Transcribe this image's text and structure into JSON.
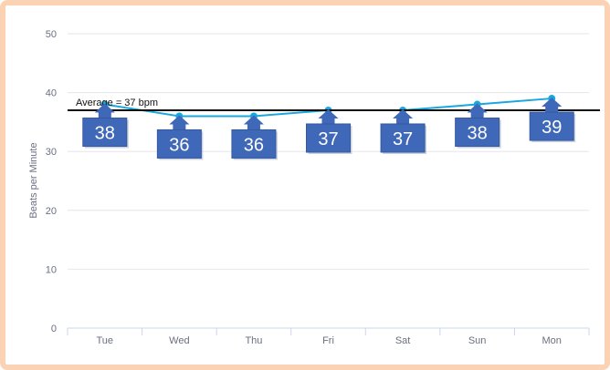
{
  "chart_data": {
    "type": "line",
    "title": "",
    "xlabel": "",
    "ylabel": "Beats per Minute",
    "categories": [
      "Tue",
      "Wed",
      "Thu",
      "Fri",
      "Sat",
      "Sun",
      "Mon"
    ],
    "values": [
      38,
      36,
      36,
      37,
      37,
      38,
      39
    ],
    "data_labels": [
      "38",
      "36",
      "36",
      "37",
      "37",
      "38",
      "39"
    ],
    "yticks": [
      "0",
      "10",
      "20",
      "30",
      "40",
      "50"
    ],
    "ylim": [
      0,
      50
    ],
    "grid": true,
    "average": {
      "value": 37,
      "label": "Average = 37 bpm"
    },
    "colors": {
      "line": "#1aa7df",
      "average": "#111111",
      "callout": "#3f68b8",
      "grid": "#e6e6ee"
    }
  }
}
